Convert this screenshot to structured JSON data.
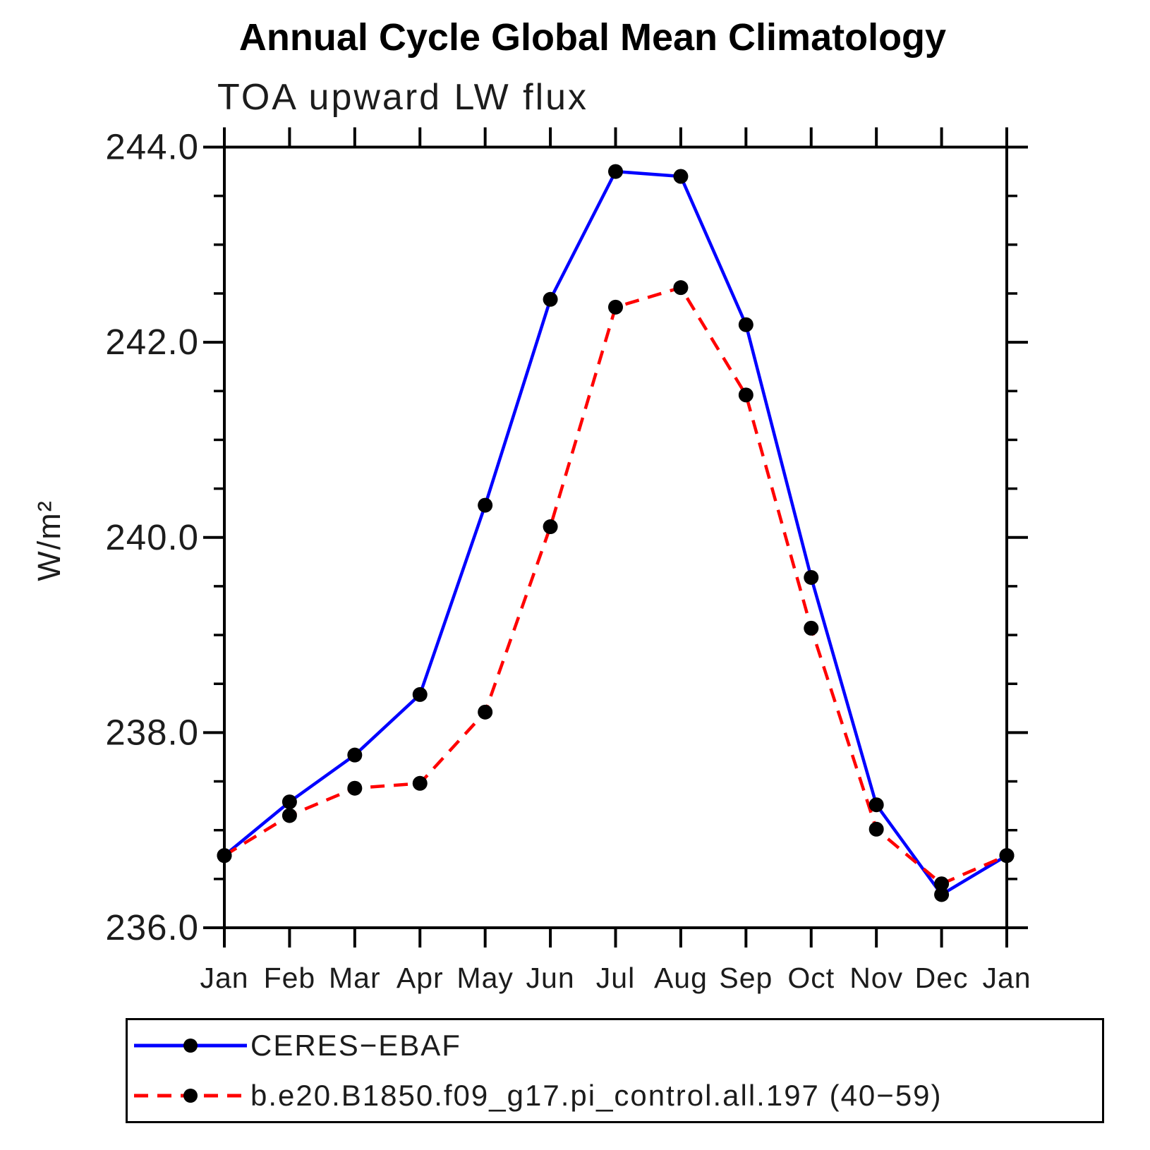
{
  "title": "Annual Cycle Global Mean Climatology",
  "chart_data": {
    "type": "line",
    "title": "Annual Cycle Global Mean Climatology",
    "subtitle": "TOA upward LW flux",
    "ylabel": "W/m²",
    "xlabel": "",
    "x_labels": [
      "Jan",
      "Feb",
      "Mar",
      "Apr",
      "May",
      "Jun",
      "Jul",
      "Aug",
      "Sep",
      "Oct",
      "Nov",
      "Dec",
      "Jan"
    ],
    "ylim": [
      236.0,
      244.0
    ],
    "y_major_tick_step": 2.0,
    "y_minor_tick_step": 0.5,
    "y_tick_labels": [
      "244.0",
      "242.0",
      "240.0",
      "238.0",
      "236.0"
    ],
    "grid": false,
    "legend_position": "bottom-left-box",
    "frame_color": "#000000",
    "marker_color": "#000000",
    "series": [
      {
        "name": "CERES−EBAF",
        "color": "#0000ff",
        "style": "solid",
        "marker": "filled-circle",
        "values": [
          236.74,
          237.29,
          237.77,
          238.39,
          240.33,
          242.44,
          243.75,
          243.7,
          242.18,
          239.59,
          237.26,
          236.34,
          236.74
        ]
      },
      {
        "name": "b.e20.B1850.f09_g17.pi_control.all.197 (40−59)",
        "color": "#ff0000",
        "style": "dashed",
        "dash": "20 13",
        "marker": "filled-circle",
        "values": [
          236.74,
          237.15,
          237.43,
          237.48,
          238.21,
          240.11,
          242.36,
          242.56,
          241.46,
          239.07,
          237.01,
          236.45,
          236.74
        ]
      }
    ]
  }
}
